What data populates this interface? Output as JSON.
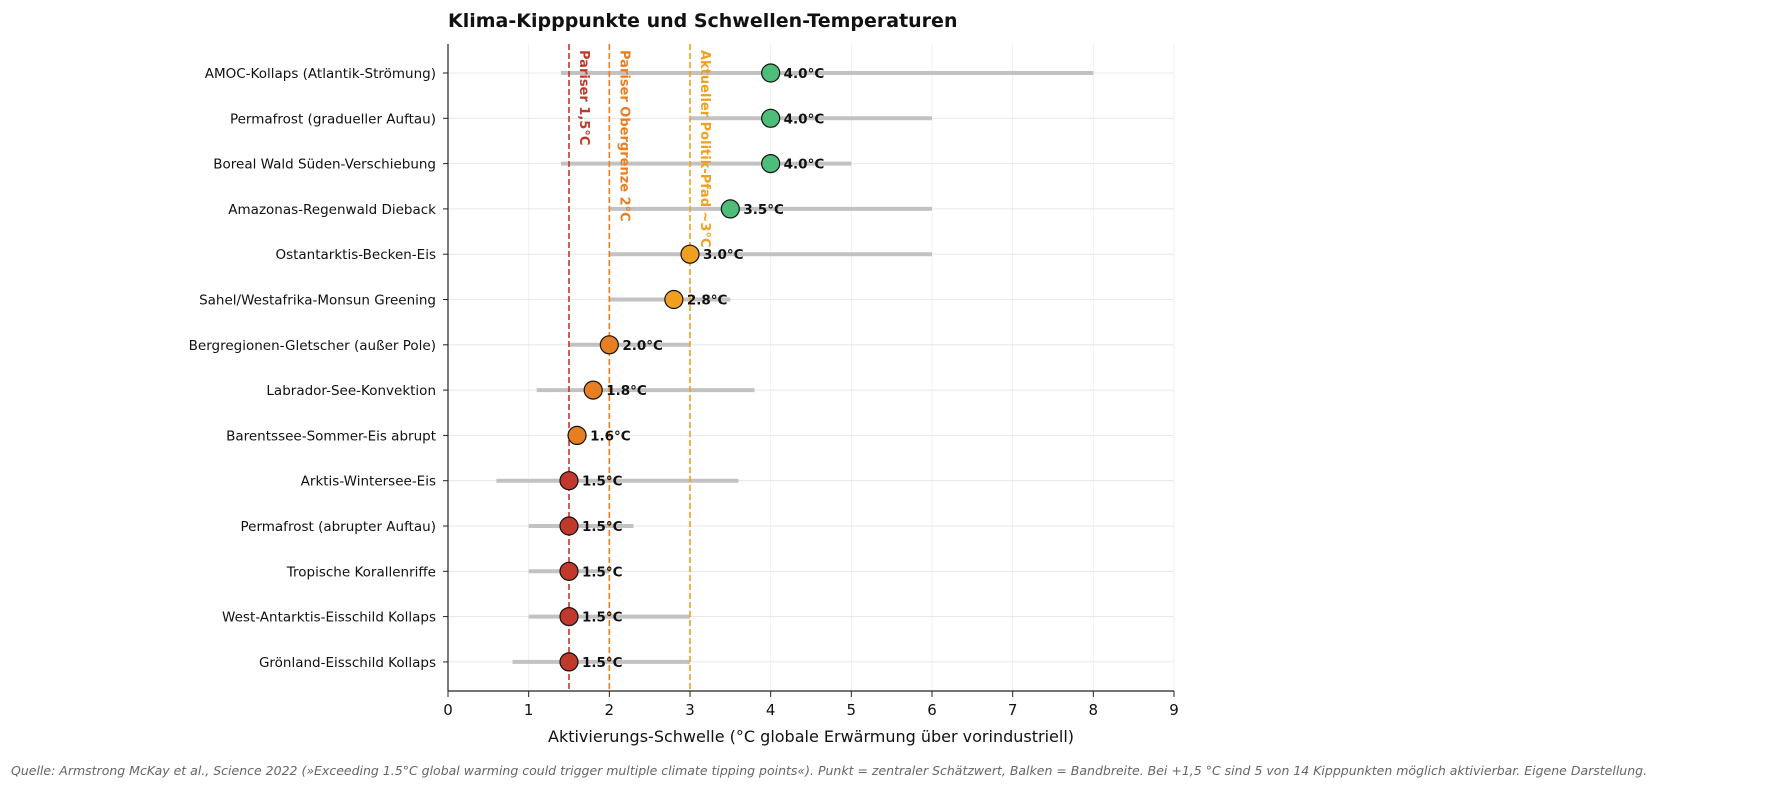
{
  "chart_data": {
    "type": "dot-range",
    "title": "Klima-Kipppunkte und Schwellen-Temperaturen",
    "xlabel": "Aktivierungs-Schwelle (°C globale Erwärmung über vorindustriell)",
    "xlim": [
      0,
      9
    ],
    "xticks": [
      0,
      1,
      2,
      3,
      4,
      5,
      6,
      7,
      8,
      9
    ],
    "grid": true,
    "value_suffix": "°C",
    "items": [
      {
        "label": "AMOC-Kollaps (Atlantik-Strömung)",
        "value": 4.0,
        "low": 1.4,
        "high": 8.0,
        "color": "#4dbd7a"
      },
      {
        "label": "Permafrost (gradueller Auftau)",
        "value": 4.0,
        "low": 3.0,
        "high": 6.0,
        "color": "#4dbd7a"
      },
      {
        "label": "Boreal Wald Süden-Verschiebung",
        "value": 4.0,
        "low": 1.4,
        "high": 5.0,
        "color": "#4dbd7a"
      },
      {
        "label": "Amazonas-Regenwald Dieback",
        "value": 3.5,
        "low": 2.0,
        "high": 6.0,
        "color": "#4dbd7a"
      },
      {
        "label": "Ostantarktis-Becken-Eis",
        "value": 3.0,
        "low": 2.0,
        "high": 6.0,
        "color": "#f0a020"
      },
      {
        "label": "Sahel/Westafrika-Monsun Greening",
        "value": 2.8,
        "low": 2.0,
        "high": 3.5,
        "color": "#f0a020"
      },
      {
        "label": "Bergregionen-Gletscher (außer Pole)",
        "value": 2.0,
        "low": 1.5,
        "high": 3.0,
        "color": "#e87e22"
      },
      {
        "label": "Labrador-See-Konvektion",
        "value": 1.8,
        "low": 1.1,
        "high": 3.8,
        "color": "#e87e22"
      },
      {
        "label": "Barentssee-Sommer-Eis abrupt",
        "value": 1.6,
        "low": 1.5,
        "high": 1.7,
        "color": "#e87e22"
      },
      {
        "label": "Arktis-Wintersee-Eis",
        "value": 1.5,
        "low": 0.6,
        "high": 3.6,
        "color": "#c0392b"
      },
      {
        "label": "Permafrost (abrupter Auftau)",
        "value": 1.5,
        "low": 1.0,
        "high": 2.3,
        "color": "#c0392b"
      },
      {
        "label": "Tropische Korallenriffe",
        "value": 1.5,
        "low": 1.0,
        "high": 2.0,
        "color": "#c0392b"
      },
      {
        "label": "West-Antarktis-Eisschild Kollaps",
        "value": 1.5,
        "low": 1.0,
        "high": 3.0,
        "color": "#c0392b"
      },
      {
        "label": "Grönland-Eisschild Kollaps",
        "value": 1.5,
        "low": 0.8,
        "high": 3.0,
        "color": "#c0392b"
      }
    ],
    "reference_lines": [
      {
        "x": 1.5,
        "label": "Pariser 1,5°C",
        "color": "#c0392b"
      },
      {
        "x": 2.0,
        "label": "Pariser Obergrenze 2°C",
        "color": "#e87e22"
      },
      {
        "x": 3.0,
        "label": "Aktueller Politik-Pfad ~3°C",
        "color": "#f0a020"
      }
    ],
    "source_note": "Quelle: Armstrong McKay et al., Science 2022 (»Exceeding 1.5°C global warming could trigger multiple climate tipping points«). Punkt = zentraler Schätzwert, Balken = Bandbreite. Bei +1,5 °C sind 5 von 14 Kipppunkten möglich aktivierbar. Eigene Darstellung."
  }
}
